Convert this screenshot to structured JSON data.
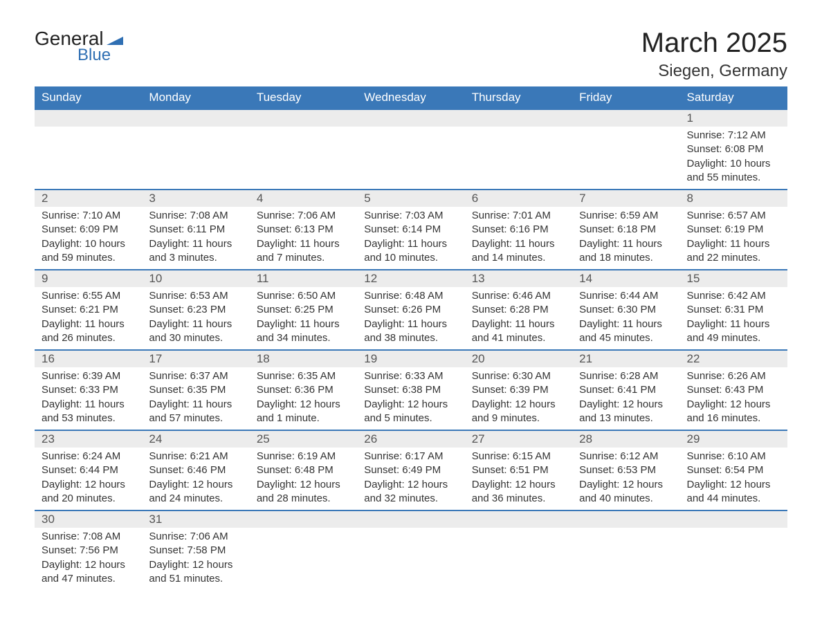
{
  "logo": {
    "text1": "General",
    "text2": "Blue",
    "flag_color": "#2f6fb3",
    "text1_color": "#222222"
  },
  "title": "March 2025",
  "location": "Siegen, Germany",
  "colors": {
    "header_bg": "#3a78b8",
    "header_text": "#ffffff",
    "daynum_bg": "#ececec",
    "row_divider": "#3a78b8",
    "body_text": "#333333",
    "page_bg": "#ffffff"
  },
  "typography": {
    "title_fontsize": 40,
    "location_fontsize": 24,
    "header_fontsize": 17,
    "daynum_fontsize": 17,
    "cell_fontsize": 15,
    "font_family": "Arial"
  },
  "layout": {
    "columns": 7,
    "rows": 6,
    "aspect": "1188x918"
  },
  "weekdays": [
    "Sunday",
    "Monday",
    "Tuesday",
    "Wednesday",
    "Thursday",
    "Friday",
    "Saturday"
  ],
  "weeks": [
    [
      {
        "empty": true
      },
      {
        "empty": true
      },
      {
        "empty": true
      },
      {
        "empty": true
      },
      {
        "empty": true
      },
      {
        "empty": true
      },
      {
        "day": "1",
        "sunrise": "Sunrise: 7:12 AM",
        "sunset": "Sunset: 6:08 PM",
        "daylight": "Daylight: 10 hours and 55 minutes."
      }
    ],
    [
      {
        "day": "2",
        "sunrise": "Sunrise: 7:10 AM",
        "sunset": "Sunset: 6:09 PM",
        "daylight": "Daylight: 10 hours and 59 minutes."
      },
      {
        "day": "3",
        "sunrise": "Sunrise: 7:08 AM",
        "sunset": "Sunset: 6:11 PM",
        "daylight": "Daylight: 11 hours and 3 minutes."
      },
      {
        "day": "4",
        "sunrise": "Sunrise: 7:06 AM",
        "sunset": "Sunset: 6:13 PM",
        "daylight": "Daylight: 11 hours and 7 minutes."
      },
      {
        "day": "5",
        "sunrise": "Sunrise: 7:03 AM",
        "sunset": "Sunset: 6:14 PM",
        "daylight": "Daylight: 11 hours and 10 minutes."
      },
      {
        "day": "6",
        "sunrise": "Sunrise: 7:01 AM",
        "sunset": "Sunset: 6:16 PM",
        "daylight": "Daylight: 11 hours and 14 minutes."
      },
      {
        "day": "7",
        "sunrise": "Sunrise: 6:59 AM",
        "sunset": "Sunset: 6:18 PM",
        "daylight": "Daylight: 11 hours and 18 minutes."
      },
      {
        "day": "8",
        "sunrise": "Sunrise: 6:57 AM",
        "sunset": "Sunset: 6:19 PM",
        "daylight": "Daylight: 11 hours and 22 minutes."
      }
    ],
    [
      {
        "day": "9",
        "sunrise": "Sunrise: 6:55 AM",
        "sunset": "Sunset: 6:21 PM",
        "daylight": "Daylight: 11 hours and 26 minutes."
      },
      {
        "day": "10",
        "sunrise": "Sunrise: 6:53 AM",
        "sunset": "Sunset: 6:23 PM",
        "daylight": "Daylight: 11 hours and 30 minutes."
      },
      {
        "day": "11",
        "sunrise": "Sunrise: 6:50 AM",
        "sunset": "Sunset: 6:25 PM",
        "daylight": "Daylight: 11 hours and 34 minutes."
      },
      {
        "day": "12",
        "sunrise": "Sunrise: 6:48 AM",
        "sunset": "Sunset: 6:26 PM",
        "daylight": "Daylight: 11 hours and 38 minutes."
      },
      {
        "day": "13",
        "sunrise": "Sunrise: 6:46 AM",
        "sunset": "Sunset: 6:28 PM",
        "daylight": "Daylight: 11 hours and 41 minutes."
      },
      {
        "day": "14",
        "sunrise": "Sunrise: 6:44 AM",
        "sunset": "Sunset: 6:30 PM",
        "daylight": "Daylight: 11 hours and 45 minutes."
      },
      {
        "day": "15",
        "sunrise": "Sunrise: 6:42 AM",
        "sunset": "Sunset: 6:31 PM",
        "daylight": "Daylight: 11 hours and 49 minutes."
      }
    ],
    [
      {
        "day": "16",
        "sunrise": "Sunrise: 6:39 AM",
        "sunset": "Sunset: 6:33 PM",
        "daylight": "Daylight: 11 hours and 53 minutes."
      },
      {
        "day": "17",
        "sunrise": "Sunrise: 6:37 AM",
        "sunset": "Sunset: 6:35 PM",
        "daylight": "Daylight: 11 hours and 57 minutes."
      },
      {
        "day": "18",
        "sunrise": "Sunrise: 6:35 AM",
        "sunset": "Sunset: 6:36 PM",
        "daylight": "Daylight: 12 hours and 1 minute."
      },
      {
        "day": "19",
        "sunrise": "Sunrise: 6:33 AM",
        "sunset": "Sunset: 6:38 PM",
        "daylight": "Daylight: 12 hours and 5 minutes."
      },
      {
        "day": "20",
        "sunrise": "Sunrise: 6:30 AM",
        "sunset": "Sunset: 6:39 PM",
        "daylight": "Daylight: 12 hours and 9 minutes."
      },
      {
        "day": "21",
        "sunrise": "Sunrise: 6:28 AM",
        "sunset": "Sunset: 6:41 PM",
        "daylight": "Daylight: 12 hours and 13 minutes."
      },
      {
        "day": "22",
        "sunrise": "Sunrise: 6:26 AM",
        "sunset": "Sunset: 6:43 PM",
        "daylight": "Daylight: 12 hours and 16 minutes."
      }
    ],
    [
      {
        "day": "23",
        "sunrise": "Sunrise: 6:24 AM",
        "sunset": "Sunset: 6:44 PM",
        "daylight": "Daylight: 12 hours and 20 minutes."
      },
      {
        "day": "24",
        "sunrise": "Sunrise: 6:21 AM",
        "sunset": "Sunset: 6:46 PM",
        "daylight": "Daylight: 12 hours and 24 minutes."
      },
      {
        "day": "25",
        "sunrise": "Sunrise: 6:19 AM",
        "sunset": "Sunset: 6:48 PM",
        "daylight": "Daylight: 12 hours and 28 minutes."
      },
      {
        "day": "26",
        "sunrise": "Sunrise: 6:17 AM",
        "sunset": "Sunset: 6:49 PM",
        "daylight": "Daylight: 12 hours and 32 minutes."
      },
      {
        "day": "27",
        "sunrise": "Sunrise: 6:15 AM",
        "sunset": "Sunset: 6:51 PM",
        "daylight": "Daylight: 12 hours and 36 minutes."
      },
      {
        "day": "28",
        "sunrise": "Sunrise: 6:12 AM",
        "sunset": "Sunset: 6:53 PM",
        "daylight": "Daylight: 12 hours and 40 minutes."
      },
      {
        "day": "29",
        "sunrise": "Sunrise: 6:10 AM",
        "sunset": "Sunset: 6:54 PM",
        "daylight": "Daylight: 12 hours and 44 minutes."
      }
    ],
    [
      {
        "day": "30",
        "sunrise": "Sunrise: 7:08 AM",
        "sunset": "Sunset: 7:56 PM",
        "daylight": "Daylight: 12 hours and 47 minutes."
      },
      {
        "day": "31",
        "sunrise": "Sunrise: 7:06 AM",
        "sunset": "Sunset: 7:58 PM",
        "daylight": "Daylight: 12 hours and 51 minutes."
      },
      {
        "empty": true
      },
      {
        "empty": true
      },
      {
        "empty": true
      },
      {
        "empty": true
      },
      {
        "empty": true
      }
    ]
  ]
}
